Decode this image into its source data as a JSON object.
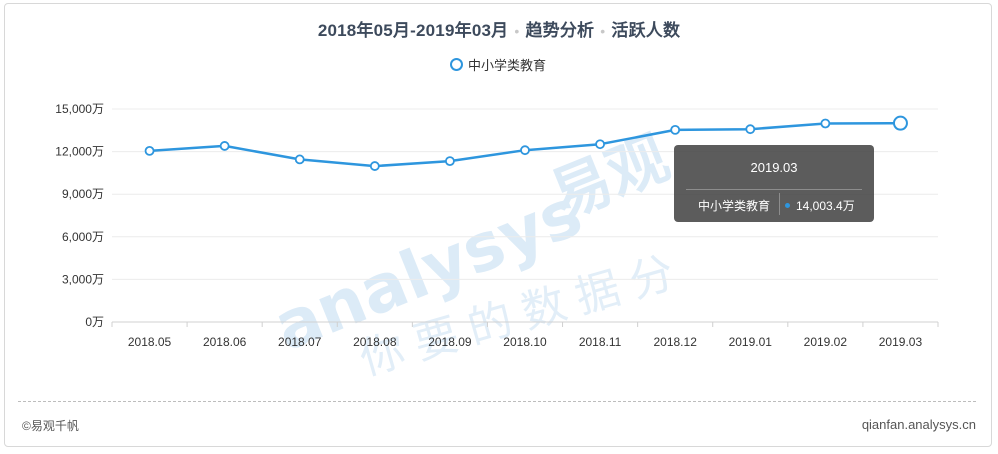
{
  "header": {
    "period": "2018年05月-2019年03月",
    "section": "趋势分析",
    "metric": "活跃人数"
  },
  "legend": {
    "label": "中小学类教育"
  },
  "colors": {
    "line": "#2e96de",
    "grid": "#ececec",
    "axis": "#d0d0d0",
    "watermark": "#dcebf7",
    "watermark_accent": "#fbe4d3"
  },
  "chart_data": {
    "type": "line",
    "categories": [
      "2018.05",
      "2018.06",
      "2018.07",
      "2018.08",
      "2018.09",
      "2018.10",
      "2018.11",
      "2018.12",
      "2019.01",
      "2019.02",
      "2019.03"
    ],
    "series": [
      {
        "name": "中小学类教育",
        "values": [
          12050,
          12400,
          11450,
          10980,
          11330,
          12100,
          12520,
          13530,
          13580,
          13980,
          14003.4
        ]
      }
    ],
    "y_ticks": [
      "0万",
      "3,000万",
      "6,000万",
      "9,000万",
      "12,000万",
      "15,000万"
    ],
    "ylim": [
      0,
      15000
    ],
    "grid": true,
    "highlighted_index": 10
  },
  "tooltip": {
    "title": "2019.03",
    "series_name": "中小学类教育",
    "value": "14,003.4万"
  },
  "footer": {
    "copyright": "©易观千帆",
    "site": "qianfan.analysys.cn"
  },
  "watermark": {
    "brand": "analysys",
    "brand_cn": "易观",
    "slogan": "你要的数据分"
  }
}
